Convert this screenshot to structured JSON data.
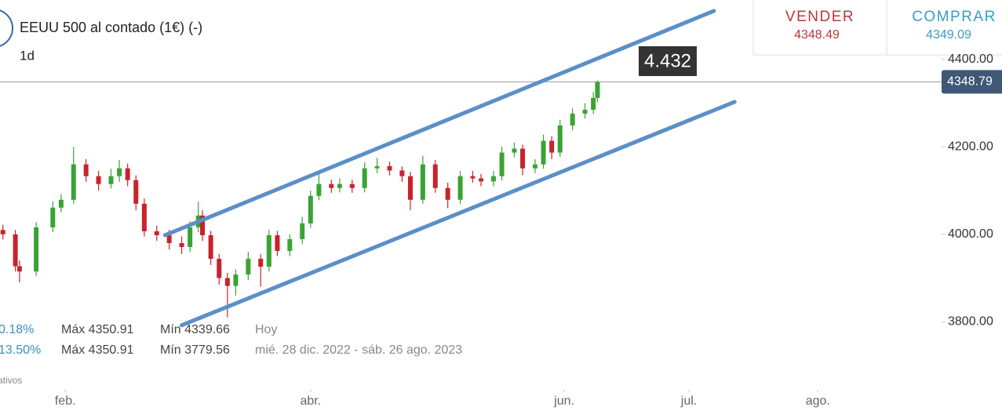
{
  "header": {
    "title": "EEUU 500 al contado (1€) (-)",
    "interval": "1d"
  },
  "quote": {
    "sell_label": "VENDER",
    "sell": "4348.49",
    "buy_label": "COMPRAR",
    "buy": "4349.09"
  },
  "stats": [
    {
      "change": "0.18%",
      "max": "Máx 4350.91",
      "min": "Mín 4339.66",
      "period": "Hoy"
    },
    {
      "change": "13.50%",
      "max": "Máx 4350.91",
      "min": "Mín 3779.56",
      "period": "mié. 28 dic. 2022 - sáb. 26 ago. 2023"
    }
  ],
  "footnote": "ativos",
  "chart_data": {
    "type": "candlestick",
    "up_color": "#3aa335",
    "down_color": "#c8232c",
    "line_color": "#5b8fc7",
    "xlim": [
      16.3,
      257.3
    ],
    "ylim": [
      3589,
      4536
    ],
    "xticks": [
      {
        "value": 32,
        "label": "feb."
      },
      {
        "value": 91,
        "label": "abr."
      },
      {
        "value": 152,
        "label": "jun."
      },
      {
        "value": 182,
        "label": "jul."
      },
      {
        "value": 213,
        "label": "ago."
      }
    ],
    "yticks": [
      {
        "value": 4400,
        "label": "4400.00"
      },
      {
        "value": 4200,
        "label": "4200.00"
      },
      {
        "value": 4000,
        "label": "4000.00"
      },
      {
        "value": 3800,
        "label": "3800.00"
      }
    ],
    "last": {
      "value": 4348.79,
      "label": "4348.79"
    },
    "annotation": "4.432",
    "trendlines": [
      {
        "x": [
          56,
          188
        ],
        "y": [
          3998,
          4511
        ]
      },
      {
        "x": [
          60,
          193
        ],
        "y": [
          3792,
          4303
        ]
      }
    ],
    "x": [
      17,
      20,
      21,
      25,
      29,
      31,
      34,
      37,
      40,
      43,
      45,
      47,
      49,
      51,
      54,
      57,
      60,
      62,
      64,
      65,
      67,
      69,
      71,
      73,
      76,
      79,
      81,
      83,
      86,
      89,
      91,
      93,
      96,
      98,
      101,
      104,
      107,
      110,
      113,
      115,
      118,
      121,
      124,
      127,
      130,
      132,
      135,
      137,
      140,
      142,
      145,
      147,
      149,
      151,
      154,
      157,
      159,
      160
    ],
    "ohlc": [
      [
        4010,
        4022,
        3988,
        4000
      ],
      [
        4000,
        4010,
        3915,
        3927
      ],
      [
        3927,
        3940,
        3890,
        3915
      ],
      [
        3915,
        4028,
        3905,
        4016
      ],
      [
        4016,
        4075,
        4005,
        4061
      ],
      [
        4061,
        4092,
        4050,
        4079
      ],
      [
        4079,
        4200,
        4070,
        4160
      ],
      [
        4160,
        4172,
        4120,
        4133
      ],
      [
        4133,
        4145,
        4100,
        4115
      ],
      [
        4115,
        4150,
        4105,
        4133
      ],
      [
        4133,
        4170,
        4120,
        4151
      ],
      [
        4151,
        4162,
        4110,
        4124
      ],
      [
        4124,
        4135,
        4055,
        4070
      ],
      [
        4070,
        4082,
        3995,
        4007
      ],
      [
        4007,
        4020,
        3985,
        3998
      ],
      [
        3998,
        4010,
        3965,
        3980
      ],
      [
        3980,
        3995,
        3955,
        3971
      ],
      [
        3971,
        4030,
        3960,
        4016
      ],
      [
        4016,
        4075,
        4005,
        4043
      ],
      [
        4043,
        4055,
        3985,
        3998
      ],
      [
        3998,
        4008,
        3930,
        3944
      ],
      [
        3944,
        3955,
        3885,
        3900
      ],
      [
        3900,
        3912,
        3810,
        3882
      ],
      [
        3882,
        3920,
        3860,
        3908
      ],
      [
        3908,
        3960,
        3895,
        3944
      ],
      [
        3944,
        3955,
        3880,
        3926
      ],
      [
        3926,
        4010,
        3915,
        3998
      ],
      [
        3998,
        4008,
        3950,
        3962
      ],
      [
        3962,
        4000,
        3950,
        3989
      ],
      [
        3989,
        4040,
        3978,
        4025
      ],
      [
        4025,
        4100,
        4015,
        4088
      ],
      [
        4088,
        4140,
        4078,
        4115
      ],
      [
        4115,
        4125,
        4095,
        4106
      ],
      [
        4106,
        4128,
        4096,
        4115
      ],
      [
        4115,
        4125,
        4095,
        4106
      ],
      [
        4106,
        4165,
        4096,
        4151
      ],
      [
        4151,
        4175,
        4140,
        4156
      ],
      [
        4156,
        4166,
        4135,
        4146
      ],
      [
        4146,
        4155,
        4120,
        4133
      ],
      [
        4133,
        4143,
        4055,
        4079
      ],
      [
        4079,
        4180,
        4070,
        4160
      ],
      [
        4160,
        4170,
        4095,
        4106
      ],
      [
        4106,
        4118,
        4060,
        4079
      ],
      [
        4079,
        4145,
        4070,
        4133
      ],
      [
        4133,
        4145,
        4118,
        4128
      ],
      [
        4128,
        4138,
        4110,
        4121
      ],
      [
        4121,
        4145,
        4110,
        4133
      ],
      [
        4133,
        4200,
        4123,
        4187
      ],
      [
        4187,
        4210,
        4176,
        4196
      ],
      [
        4196,
        4205,
        4135,
        4151
      ],
      [
        4151,
        4172,
        4140,
        4160
      ],
      [
        4160,
        4228,
        4150,
        4214
      ],
      [
        4214,
        4225,
        4172,
        4187
      ],
      [
        4187,
        4262,
        4177,
        4249
      ],
      [
        4249,
        4288,
        4238,
        4276
      ],
      [
        4276,
        4300,
        4265,
        4285
      ],
      [
        4285,
        4325,
        4275,
        4312
      ],
      [
        4312,
        4352,
        4302,
        4348
      ]
    ]
  }
}
